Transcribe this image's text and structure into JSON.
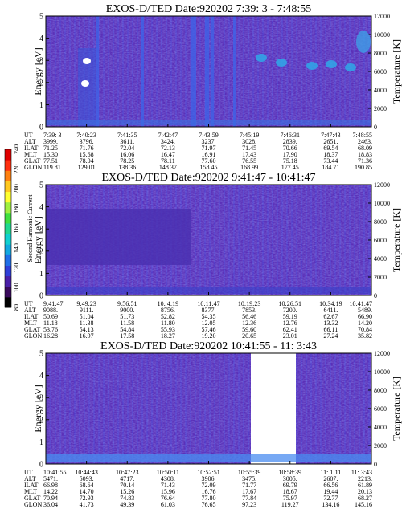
{
  "figure": {
    "colorbar": {
      "label": "Second Harmonic Current",
      "ticks": [
        "80",
        "100",
        "120",
        "140",
        "160",
        "180",
        "200",
        "220",
        "240"
      ],
      "colors": [
        "#000000",
        "#3a0a5c",
        "#4a1fa8",
        "#2f3fd8",
        "#1f6fe8",
        "#12a8e0",
        "#10d0d0",
        "#20d890",
        "#40e040",
        "#a0f040",
        "#ffff30",
        "#ffc820",
        "#ff8010",
        "#ff3010",
        "#e00000"
      ]
    }
  },
  "chart_data": [
    {
      "type": "heatmap",
      "title": "EXOS-D/TED   Date:920202   7:39: 3 - 7:48:55",
      "ylabel": "Energy [eV]",
      "ylabel_right": "Temperature [K]",
      "ylim": [
        0,
        5
      ],
      "ylim_right": [
        0,
        12000
      ],
      "y_ticks": [
        "0",
        "1",
        "2",
        "3",
        "4",
        "5"
      ],
      "y_ticks_right": [
        "0",
        "2000",
        "4000",
        "6000",
        "8000",
        "10000",
        "12000"
      ],
      "columns": [
        "7:39: 3",
        "7:40:23",
        "7:41:35",
        "7:42:47",
        "7:43:59",
        "7:45:19",
        "7:46:31",
        "7:47:43",
        "7:48:55"
      ],
      "rows": [
        {
          "name": "UT",
          "values": [
            "7:39: 3",
            "7:40:23",
            "7:41:35",
            "7:42:47",
            "7:43:59",
            "7:45:19",
            "7:46:31",
            "7:47:43",
            "7:48:55"
          ]
        },
        {
          "name": "ALT",
          "values": [
            "3999.",
            "3796.",
            "3611.",
            "3424.",
            "3237.",
            "3028.",
            "2839.",
            "2651.",
            "2463."
          ]
        },
        {
          "name": "ILAT",
          "values": [
            "71.25",
            "71.76",
            "72.04",
            "72.13",
            "71.97",
            "71.45",
            "70.66",
            "69.54",
            "68.09"
          ]
        },
        {
          "name": "MLT",
          "values": [
            "15.30",
            "15.68",
            "16.06",
            "16.47",
            "16.91",
            "17.43",
            "17.90",
            "18.37",
            "18.83"
          ]
        },
        {
          "name": "GLAT",
          "values": [
            "77.51",
            "78.04",
            "78.25",
            "78.11",
            "77.60",
            "76.55",
            "75.18",
            "73.44",
            "71.36"
          ]
        },
        {
          "name": "GLON",
          "values": [
            "119.81",
            "129.01",
            "138.36",
            "148.37",
            "158.45",
            "168.99",
            "177.45",
            "184.71",
            "190.85"
          ]
        }
      ]
    },
    {
      "type": "heatmap",
      "title": "EXOS-D/TED   Date:920202   9:41:47 - 10:41:47",
      "ylabel": "Energy [eV]",
      "ylabel_right": "Temperature [K]",
      "ylim": [
        0,
        5
      ],
      "ylim_right": [
        0,
        12000
      ],
      "y_ticks": [
        "0",
        "1",
        "2",
        "3",
        "4",
        "5"
      ],
      "y_ticks_right": [
        "0",
        "2000",
        "4000",
        "6000",
        "8000",
        "10000",
        "12000"
      ],
      "columns": [
        "9:41:47",
        "9:49:23",
        "9:56:51",
        "10: 4:19",
        "10:11:47",
        "10:19:23",
        "10:26:51",
        "10:34:19",
        "10:41:47"
      ],
      "rows": [
        {
          "name": "UT",
          "values": [
            "9:41:47",
            "9:49:23",
            "9:56:51",
            "10: 4:19",
            "10:11:47",
            "10:19:23",
            "10:26:51",
            "10:34:19",
            "10:41:47"
          ]
        },
        {
          "name": "ALT",
          "values": [
            "9088.",
            "9111.",
            "9000.",
            "8756.",
            "8377.",
            "7853.",
            "7200.",
            "6411.",
            "5489."
          ]
        },
        {
          "name": "ILAT",
          "values": [
            "50.69",
            "51.04",
            "51.73",
            "52.82",
            "54.35",
            "56.46",
            "59.19",
            "62.67",
            "66.90"
          ]
        },
        {
          "name": "MLT",
          "values": [
            "11.18",
            "11.38",
            "11.58",
            "11.80",
            "12.05",
            "12.36",
            "12.76",
            "13.32",
            "14.20"
          ]
        },
        {
          "name": "GLAT",
          "values": [
            "53.76",
            "54.13",
            "54.84",
            "55.93",
            "57.46",
            "59.60",
            "62.41",
            "66.11",
            "70.84"
          ]
        },
        {
          "name": "GLON",
          "values": [
            "16.28",
            "16.97",
            "17.58",
            "18.27",
            "19.20",
            "20.65",
            "23.01",
            "27.24",
            "35.82"
          ]
        }
      ]
    },
    {
      "type": "heatmap",
      "title": "EXOS-D/TED   Date:920202   10:41:55 - 11: 3:43",
      "ylabel": "Energy [eV]",
      "ylabel_right": "Temperature [K]",
      "ylim": [
        0,
        5
      ],
      "ylim_right": [
        0,
        12000
      ],
      "y_ticks": [
        "0",
        "1",
        "2",
        "3",
        "4",
        "5"
      ],
      "y_ticks_right": [
        "0",
        "2000",
        "4000",
        "6000",
        "8000",
        "10000",
        "12000"
      ],
      "columns": [
        "10:41:55",
        "10:44:43",
        "10:47:23",
        "10:50:11",
        "10:52:51",
        "10:55:39",
        "10:58:39",
        "11: 1:11",
        "11: 3:43"
      ],
      "rows": [
        {
          "name": "UT",
          "values": [
            "10:41:55",
            "10:44:43",
            "10:47:23",
            "10:50:11",
            "10:52:51",
            "10:55:39",
            "10:58:39",
            "11: 1:11",
            "11: 3:43"
          ]
        },
        {
          "name": "ALT",
          "values": [
            "5471.",
            "5093.",
            "4717.",
            "4308.",
            "3906.",
            "3475.",
            "3005.",
            "2607.",
            "2213."
          ]
        },
        {
          "name": "ILAT",
          "values": [
            "66.98",
            "68.64",
            "70.14",
            "71.43",
            "72.09",
            "71.77",
            "69.79",
            "66.56",
            "61.89"
          ]
        },
        {
          "name": "MLT",
          "values": [
            "14.22",
            "14.70",
            "15.26",
            "15.96",
            "16.76",
            "17.67",
            "18.67",
            "19.44",
            "20.13"
          ]
        },
        {
          "name": "GLAT",
          "values": [
            "70.94",
            "72.93",
            "74.83",
            "76.64",
            "77.80",
            "77.84",
            "75.97",
            "72.77",
            "68.27"
          ]
        },
        {
          "name": "GLON",
          "values": [
            "36.04",
            "41.73",
            "49.39",
            "61.03",
            "76.65",
            "97.23",
            "119.27",
            "134.16",
            "145.16"
          ]
        }
      ]
    }
  ]
}
